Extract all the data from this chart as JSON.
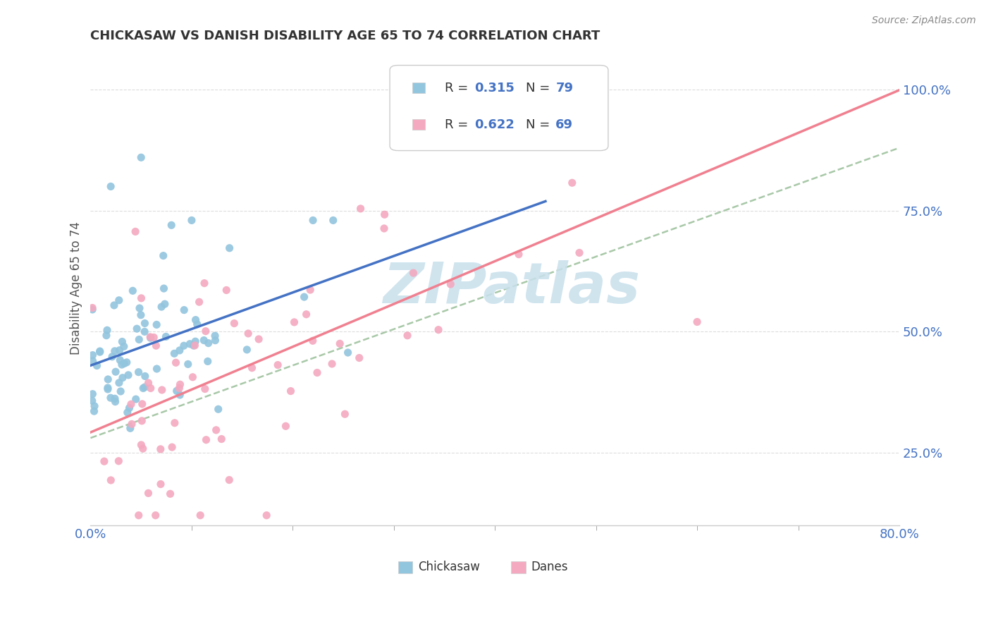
{
  "title": "CHICKASAW VS DANISH DISABILITY AGE 65 TO 74 CORRELATION CHART",
  "source": "Source: ZipAtlas.com",
  "ylabel": "Disability Age 65 to 74",
  "r_values": [
    0.315,
    0.622
  ],
  "n_values": [
    79,
    69
  ],
  "chickasaw_color": "#92C5DE",
  "danes_color": "#F4A9C0",
  "chickasaw_line_color": "#4472C4",
  "danes_line_color": "#F08090",
  "trend_dash_color": "#A8C8A8",
  "background_color": "#FFFFFF",
  "xlim": [
    0.0,
    0.8
  ],
  "ylim": [
    0.1,
    1.08
  ],
  "yticks": [
    0.25,
    0.5,
    0.75,
    1.0
  ],
  "ytick_labels": [
    "25.0%",
    "50.0%",
    "75.0%",
    "100.0%"
  ],
  "xtick_labels": [
    "0.0%",
    "80.0%"
  ],
  "legend_labels": [
    "Chickasaw",
    "Danes"
  ],
  "watermark": "ZIPatlas",
  "watermark_color": "#C8E0EC"
}
